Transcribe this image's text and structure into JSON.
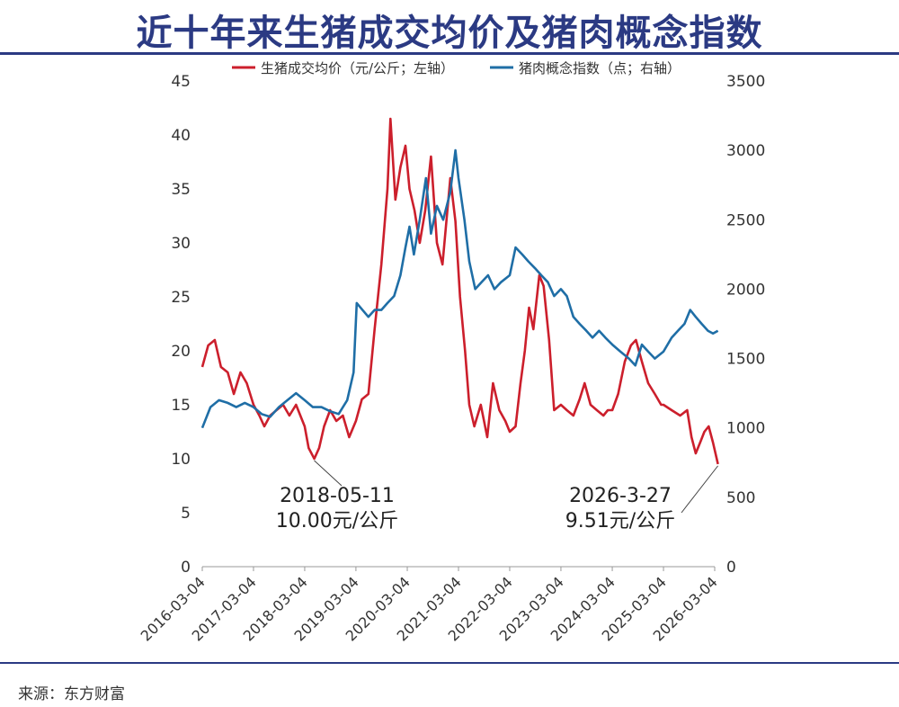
{
  "title": "近十年来生猪成交均价及猪肉概念指数",
  "source": "来源：东方财富",
  "colors": {
    "price": "#cc1f2c",
    "index": "#1f6ea6",
    "title": "#2b3a83"
  },
  "chart_data": {
    "type": "line",
    "x_tick_labels": [
      "2016-03-04",
      "2017-03-04",
      "2018-03-04",
      "2019-03-04",
      "2020-03-04",
      "2021-03-04",
      "2022-03-04",
      "2023-03-04",
      "2024-03-04",
      "2025-03-04",
      "2026-03-04"
    ],
    "left_axis": {
      "ylim": [
        0,
        45
      ],
      "ticks": [
        "0",
        "5",
        "10",
        "15",
        "20",
        "25",
        "30",
        "35",
        "40",
        "45"
      ]
    },
    "right_axis": {
      "ylim": [
        0,
        3500
      ],
      "ticks": [
        "0",
        "500",
        "1000",
        "1500",
        "2000",
        "2500",
        "3000",
        "3500"
      ]
    },
    "legend": {
      "position": "top"
    },
    "series": [
      {
        "name": "生猪成交均价（元/公斤；左轴）",
        "axis": "left",
        "color": "#cc1f2c",
        "points": [
          [
            "2016-03-04",
            18.5
          ],
          [
            "2016-04-15",
            20.5
          ],
          [
            "2016-06-01",
            21.0
          ],
          [
            "2016-07-15",
            18.5
          ],
          [
            "2016-09-01",
            18.0
          ],
          [
            "2016-10-15",
            16.0
          ],
          [
            "2016-12-01",
            18.0
          ],
          [
            "2017-01-15",
            17.0
          ],
          [
            "2017-03-04",
            15.0
          ],
          [
            "2017-04-15",
            14.0
          ],
          [
            "2017-05-20",
            13.0
          ],
          [
            "2017-07-01",
            14.0
          ],
          [
            "2017-08-15",
            14.5
          ],
          [
            "2017-10-01",
            15.0
          ],
          [
            "2017-11-15",
            14.0
          ],
          [
            "2018-01-01",
            15.0
          ],
          [
            "2018-03-04",
            13.0
          ],
          [
            "2018-04-01",
            11.0
          ],
          [
            "2018-05-11",
            10.0
          ],
          [
            "2018-06-15",
            11.0
          ],
          [
            "2018-07-20",
            13.0
          ],
          [
            "2018-09-01",
            14.5
          ],
          [
            "2018-10-15",
            13.5
          ],
          [
            "2018-12-01",
            14.0
          ],
          [
            "2019-01-15",
            12.0
          ],
          [
            "2019-03-04",
            13.5
          ],
          [
            "2019-04-15",
            15.5
          ],
          [
            "2019-06-01",
            16.0
          ],
          [
            "2019-07-15",
            22.0
          ],
          [
            "2019-09-01",
            28.0
          ],
          [
            "2019-10-15",
            35.0
          ],
          [
            "2019-11-05",
            41.5
          ],
          [
            "2019-12-10",
            34.0
          ],
          [
            "2020-01-15",
            37.0
          ],
          [
            "2020-02-20",
            39.0
          ],
          [
            "2020-03-20",
            35.0
          ],
          [
            "2020-04-25",
            33.0
          ],
          [
            "2020-06-01",
            30.0
          ],
          [
            "2020-07-10",
            33.0
          ],
          [
            "2020-08-20",
            38.0
          ],
          [
            "2020-10-01",
            30.0
          ],
          [
            "2020-11-10",
            28.0
          ],
          [
            "2021-01-05",
            36.0
          ],
          [
            "2021-02-10",
            32.0
          ],
          [
            "2021-03-15",
            25.0
          ],
          [
            "2021-04-20",
            20.0
          ],
          [
            "2021-05-20",
            15.0
          ],
          [
            "2021-06-25",
            13.0
          ],
          [
            "2021-08-10",
            15.0
          ],
          [
            "2021-09-25",
            12.0
          ],
          [
            "2021-11-05",
            17.0
          ],
          [
            "2021-12-20",
            14.5
          ],
          [
            "2022-02-01",
            13.5
          ],
          [
            "2022-03-04",
            12.5
          ],
          [
            "2022-04-15",
            13.0
          ],
          [
            "2022-05-20",
            17.0
          ],
          [
            "2022-06-20",
            20.0
          ],
          [
            "2022-07-20",
            24.0
          ],
          [
            "2022-08-20",
            22.0
          ],
          [
            "2022-10-01",
            27.0
          ],
          [
            "2022-11-01",
            26.0
          ],
          [
            "2022-12-10",
            21.0
          ],
          [
            "2023-01-15",
            14.5
          ],
          [
            "2023-03-04",
            15.0
          ],
          [
            "2023-04-15",
            14.5
          ],
          [
            "2023-06-01",
            14.0
          ],
          [
            "2023-07-15",
            15.5
          ],
          [
            "2023-08-20",
            17.0
          ],
          [
            "2023-10-01",
            15.0
          ],
          [
            "2023-11-15",
            14.5
          ],
          [
            "2024-01-01",
            14.0
          ],
          [
            "2024-02-01",
            14.5
          ],
          [
            "2024-03-04",
            14.5
          ],
          [
            "2024-04-15",
            16.0
          ],
          [
            "2024-06-01",
            19.0
          ],
          [
            "2024-07-15",
            20.5
          ],
          [
            "2024-08-20",
            21.0
          ],
          [
            "2024-10-01",
            19.0
          ],
          [
            "2024-11-15",
            17.0
          ],
          [
            "2025-01-01",
            16.0
          ],
          [
            "2025-02-15",
            15.0
          ],
          [
            "2025-03-04",
            15.0
          ],
          [
            "2025-05-01",
            14.5
          ],
          [
            "2025-07-01",
            14.0
          ],
          [
            "2025-08-20",
            14.5
          ],
          [
            "2025-09-20",
            12.0
          ],
          [
            "2025-10-20",
            10.5
          ],
          [
            "2025-11-20",
            11.5
          ],
          [
            "2025-12-20",
            12.5
          ],
          [
            "2026-01-20",
            13.0
          ],
          [
            "2026-02-20",
            11.5
          ],
          [
            "2026-03-27",
            9.51
          ]
        ]
      },
      {
        "name": "猪肉概念指数（点；右轴）",
        "axis": "right",
        "color": "#1f6ea6",
        "points": [
          [
            "2016-03-04",
            1000
          ],
          [
            "2016-05-01",
            1150
          ],
          [
            "2016-07-01",
            1200
          ],
          [
            "2016-09-01",
            1180
          ],
          [
            "2016-11-01",
            1150
          ],
          [
            "2017-01-01",
            1180
          ],
          [
            "2017-03-04",
            1150
          ],
          [
            "2017-05-01",
            1100
          ],
          [
            "2017-07-01",
            1080
          ],
          [
            "2017-09-01",
            1150
          ],
          [
            "2017-11-01",
            1200
          ],
          [
            "2018-01-01",
            1250
          ],
          [
            "2018-03-04",
            1200
          ],
          [
            "2018-05-01",
            1150
          ],
          [
            "2018-07-01",
            1150
          ],
          [
            "2018-09-01",
            1120
          ],
          [
            "2018-11-01",
            1100
          ],
          [
            "2019-01-01",
            1200
          ],
          [
            "2019-02-15",
            1400
          ],
          [
            "2019-03-10",
            1900
          ],
          [
            "2019-04-20",
            1850
          ],
          [
            "2019-06-01",
            1800
          ],
          [
            "2019-07-15",
            1850
          ],
          [
            "2019-09-01",
            1850
          ],
          [
            "2019-10-15",
            1900
          ],
          [
            "2019-12-01",
            1950
          ],
          [
            "2020-01-15",
            2100
          ],
          [
            "2020-02-20",
            2300
          ],
          [
            "2020-03-20",
            2450
          ],
          [
            "2020-04-20",
            2250
          ],
          [
            "2020-06-01",
            2500
          ],
          [
            "2020-07-15",
            2800
          ],
          [
            "2020-08-20",
            2400
          ],
          [
            "2020-10-01",
            2600
          ],
          [
            "2020-11-15",
            2500
          ],
          [
            "2021-01-05",
            2700
          ],
          [
            "2021-02-10",
            3000
          ],
          [
            "2021-03-04",
            2800
          ],
          [
            "2021-04-15",
            2500
          ],
          [
            "2021-05-20",
            2200
          ],
          [
            "2021-07-01",
            2000
          ],
          [
            "2021-08-15",
            2050
          ],
          [
            "2021-10-01",
            2100
          ],
          [
            "2021-11-15",
            2000
          ],
          [
            "2022-01-01",
            2050
          ],
          [
            "2022-03-04",
            2100
          ],
          [
            "2022-04-15",
            2300
          ],
          [
            "2022-06-01",
            2250
          ],
          [
            "2022-07-15",
            2200
          ],
          [
            "2022-09-01",
            2150
          ],
          [
            "2022-10-15",
            2100
          ],
          [
            "2022-12-01",
            2050
          ],
          [
            "2023-01-15",
            1950
          ],
          [
            "2023-03-04",
            2000
          ],
          [
            "2023-04-15",
            1950
          ],
          [
            "2023-06-01",
            1800
          ],
          [
            "2023-07-15",
            1750
          ],
          [
            "2023-09-01",
            1700
          ],
          [
            "2023-10-15",
            1650
          ],
          [
            "2023-12-01",
            1700
          ],
          [
            "2024-01-15",
            1650
          ],
          [
            "2024-03-04",
            1600
          ],
          [
            "2024-05-01",
            1550
          ],
          [
            "2024-07-01",
            1500
          ],
          [
            "2024-08-15",
            1450
          ],
          [
            "2024-10-01",
            1600
          ],
          [
            "2024-11-15",
            1550
          ],
          [
            "2025-01-01",
            1500
          ],
          [
            "2025-03-04",
            1550
          ],
          [
            "2025-05-01",
            1650
          ],
          [
            "2025-06-15",
            1700
          ],
          [
            "2025-08-01",
            1750
          ],
          [
            "2025-09-10",
            1850
          ],
          [
            "2025-10-20",
            1800
          ],
          [
            "2025-12-01",
            1750
          ],
          [
            "2026-01-15",
            1700
          ],
          [
            "2026-02-20",
            1680
          ],
          [
            "2026-03-27",
            1700
          ]
        ]
      }
    ],
    "annotations": [
      {
        "date_label": "2018-05-11",
        "value_label": "10.00元/公斤",
        "x": "2018-05-11",
        "y": 10.0
      },
      {
        "date_label": "2026-3-27",
        "value_label": "9.51元/公斤",
        "x": "2026-03-27",
        "y": 9.51
      }
    ]
  }
}
